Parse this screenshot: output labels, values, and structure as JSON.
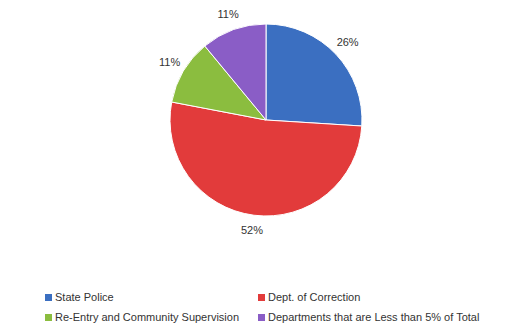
{
  "chart_data": {
    "type": "pie",
    "categories": [
      "State Police",
      "Dept. of Correction",
      "Re-Entry and Community Supervision",
      "Departments that are Less than 5% of Total"
    ],
    "values": [
      26,
      52,
      11,
      11
    ],
    "value_labels": [
      "26%",
      "52%",
      "11%",
      "11%"
    ],
    "colors": [
      "#3b6fc1",
      "#e23b3b",
      "#8bbd3f",
      "#8a5dc6"
    ],
    "data_labels": true,
    "legend": "bottom"
  }
}
